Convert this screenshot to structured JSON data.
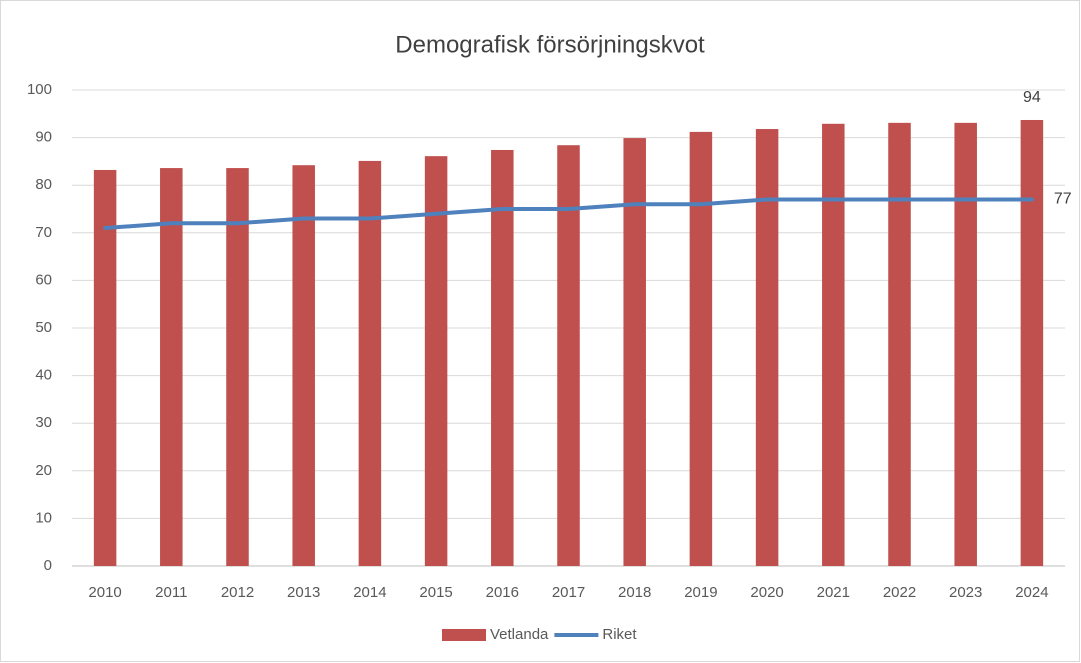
{
  "chart_data": {
    "type": "bar",
    "title": "Demografisk försörjningskvot",
    "categories": [
      "2010",
      "2011",
      "2012",
      "2013",
      "2014",
      "2015",
      "2016",
      "2017",
      "2018",
      "2019",
      "2020",
      "2021",
      "2022",
      "2023",
      "2024"
    ],
    "series": [
      {
        "name": "Vetlanda",
        "type": "bar",
        "color": "#c0504d",
        "values": [
          83.2,
          83.6,
          83.6,
          84.2,
          85.1,
          86.1,
          87.4,
          88.4,
          89.9,
          91.2,
          91.8,
          92.9,
          93.1,
          93.1,
          93.7
        ],
        "value_labels": [
          null,
          null,
          null,
          null,
          null,
          null,
          null,
          null,
          null,
          null,
          null,
          null,
          null,
          null,
          "94"
        ]
      },
      {
        "name": "Riket",
        "type": "line",
        "color": "#4f81bd",
        "values": [
          71,
          72,
          72,
          73,
          73,
          74,
          75,
          75,
          76,
          76,
          77,
          77,
          77,
          77,
          77
        ],
        "value_labels": [
          null,
          null,
          null,
          null,
          null,
          null,
          null,
          null,
          null,
          null,
          null,
          null,
          null,
          null,
          "77"
        ]
      }
    ],
    "ylim": [
      0,
      100
    ],
    "yticks": [
      0,
      10,
      20,
      30,
      40,
      50,
      60,
      70,
      80,
      90,
      100
    ],
    "grid": true,
    "legend": "bottom"
  }
}
